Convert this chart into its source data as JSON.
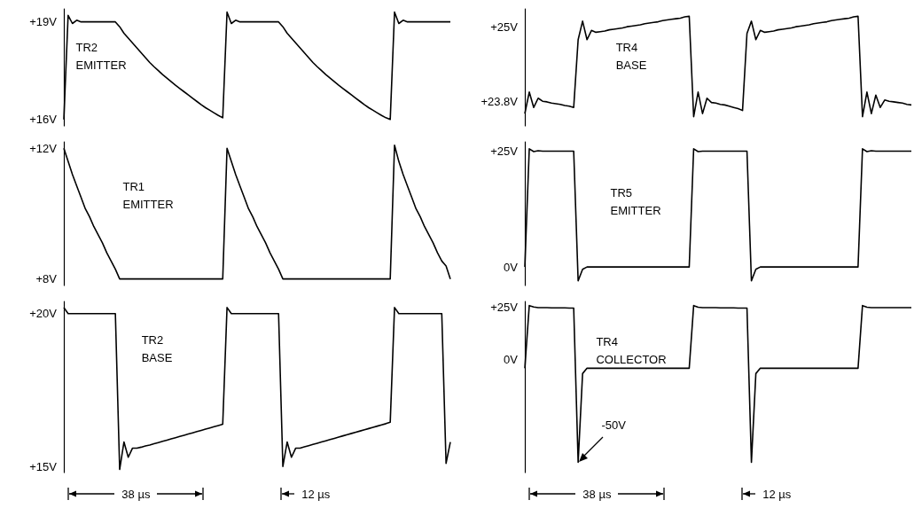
{
  "chart_data": [
    {
      "type": "line",
      "title": "TR2 EMITTER",
      "color": "#000000",
      "ylim": [
        15.8,
        19.4
      ],
      "yticks": [
        {
          "value": 19,
          "label": "+19V"
        },
        {
          "value": 16,
          "label": "+16V"
        }
      ],
      "tick_labels": "y",
      "line_style": "solid",
      "categories": [
        null,
        null,
        null,
        null,
        null,
        null,
        null,
        null,
        null,
        null,
        null,
        null,
        null,
        null,
        null,
        null,
        null,
        null,
        null,
        null,
        null,
        null,
        null,
        null,
        null,
        null,
        null,
        null,
        null,
        null,
        null,
        null,
        null,
        null,
        null,
        null,
        null,
        null,
        null,
        null,
        null,
        null,
        null,
        null,
        null,
        null,
        null,
        null,
        null,
        null,
        null,
        null,
        null,
        null,
        null,
        null,
        null,
        null,
        null,
        null,
        null,
        null,
        null,
        null,
        null,
        null,
        null,
        null,
        null,
        null,
        null,
        null,
        null,
        null,
        null,
        null,
        null,
        null,
        null,
        null,
        null,
        null,
        null,
        null,
        null,
        null,
        null,
        null,
        null,
        null,
        null
      ],
      "values": [
        16,
        19.2,
        18.95,
        19.05,
        19,
        19,
        19,
        19,
        19,
        19,
        19,
        19,
        19,
        18.85,
        18.65,
        18.5,
        18.35,
        18.2,
        18.05,
        17.9,
        17.75,
        17.62,
        17.5,
        17.38,
        17.27,
        17.16,
        17.05,
        16.95,
        16.85,
        16.75,
        16.65,
        16.55,
        16.45,
        16.36,
        16.28,
        16.2,
        16.12,
        16.05,
        19.3,
        18.95,
        19.05,
        19,
        19,
        19,
        19,
        19,
        19,
        19,
        19,
        19,
        19,
        18.85,
        18.65,
        18.5,
        18.35,
        18.2,
        18.05,
        17.9,
        17.75,
        17.62,
        17.5,
        17.38,
        17.27,
        17.16,
        17.05,
        16.95,
        16.85,
        16.75,
        16.65,
        16.55,
        16.45,
        16.36,
        16.28,
        16.2,
        16.12,
        16.05,
        16,
        19.3,
        18.95,
        19.05,
        19,
        19,
        19,
        19,
        19,
        19,
        19,
        19,
        19,
        19,
        19
      ]
    },
    {
      "type": "line",
      "title": "TR1 EMITTER",
      "color": "#000000",
      "ylim": [
        7.8,
        12.2
      ],
      "yticks": [
        {
          "value": 12,
          "label": "+12V"
        },
        {
          "value": 8,
          "label": "+8V"
        }
      ],
      "tick_labels": "y",
      "line_style": "solid",
      "categories": [
        null,
        null,
        null,
        null,
        null,
        null,
        null,
        null,
        null,
        null,
        null,
        null,
        null,
        null,
        null,
        null,
        null,
        null,
        null,
        null,
        null,
        null,
        null,
        null,
        null,
        null,
        null,
        null,
        null,
        null,
        null,
        null,
        null,
        null,
        null,
        null,
        null,
        null,
        null,
        null,
        null,
        null,
        null,
        null,
        null,
        null,
        null,
        null,
        null,
        null,
        null,
        null,
        null,
        null,
        null,
        null,
        null,
        null,
        null,
        null,
        null,
        null,
        null,
        null,
        null,
        null,
        null,
        null,
        null,
        null,
        null,
        null,
        null,
        null,
        null,
        null,
        null,
        null,
        null,
        null,
        null,
        null,
        null,
        null,
        null,
        null,
        null,
        null,
        null,
        null,
        null
      ],
      "values": [
        12,
        11.6,
        11.2,
        10.85,
        10.5,
        10.15,
        9.9,
        9.6,
        9.35,
        9.1,
        8.8,
        8.55,
        8.3,
        8,
        8,
        8,
        8,
        8,
        8,
        8,
        8,
        8,
        8,
        8,
        8,
        8,
        8,
        8,
        8,
        8,
        8,
        8,
        8,
        8,
        8,
        8,
        8,
        8,
        12,
        11.6,
        11.2,
        10.85,
        10.5,
        10.15,
        9.9,
        9.6,
        9.35,
        9.1,
        8.8,
        8.55,
        8.3,
        8,
        8,
        8,
        8,
        8,
        8,
        8,
        8,
        8,
        8,
        8,
        8,
        8,
        8,
        8,
        8,
        8,
        8,
        8,
        8,
        8,
        8,
        8,
        8,
        8,
        8,
        12.1,
        11.6,
        11.2,
        10.85,
        10.5,
        10.15,
        9.9,
        9.6,
        9.35,
        9.1,
        8.8,
        8.55,
        8.4,
        8
      ]
    },
    {
      "type": "line",
      "title": "TR2 BASE",
      "color": "#000000",
      "ylim": [
        14.8,
        20.4
      ],
      "yticks": [
        {
          "value": 20,
          "label": "+20V"
        },
        {
          "value": 15,
          "label": "+15V"
        }
      ],
      "tick_labels": "y",
      "line_style": "solid",
      "annotations": [
        "38 µs",
        "12 µs"
      ],
      "categories": [
        null,
        null,
        null,
        null,
        null,
        null,
        null,
        null,
        null,
        null,
        null,
        null,
        null,
        null,
        null,
        null,
        null,
        null,
        null,
        null,
        null,
        null,
        null,
        null,
        null,
        null,
        null,
        null,
        null,
        null,
        null,
        null,
        null,
        null,
        null,
        null,
        null,
        null,
        null,
        null,
        null,
        null,
        null,
        null,
        null,
        null,
        null,
        null,
        null,
        null,
        null,
        null,
        null,
        null,
        null,
        null,
        null,
        null,
        null,
        null,
        null,
        null,
        null,
        null,
        null,
        null,
        null,
        null,
        null,
        null,
        null,
        null,
        null,
        null,
        null,
        null,
        null,
        null,
        null,
        null,
        null,
        null,
        null,
        null,
        null,
        null,
        null,
        null,
        null,
        null,
        null
      ],
      "values": [
        20.2,
        20,
        20,
        20,
        20,
        20,
        20,
        20,
        20,
        20,
        20,
        20,
        20,
        14.9,
        15.8,
        15.3,
        15.6,
        15.6,
        15.63,
        15.67,
        15.7,
        15.74,
        15.78,
        15.82,
        15.86,
        15.9,
        15.94,
        15.98,
        16.02,
        16.06,
        16.1,
        16.14,
        16.18,
        16.22,
        16.26,
        16.3,
        16.34,
        16.38,
        20.2,
        20,
        20,
        20,
        20,
        20,
        20,
        20,
        20,
        20,
        20,
        20,
        20,
        15,
        15.8,
        15.3,
        15.6,
        15.6,
        15.64,
        15.68,
        15.72,
        15.76,
        15.8,
        15.84,
        15.88,
        15.92,
        15.96,
        16,
        16.04,
        16.08,
        16.12,
        16.16,
        16.2,
        16.24,
        16.28,
        16.32,
        16.36,
        16.4,
        16.45,
        20.2,
        20,
        20,
        20,
        20,
        20,
        20,
        20,
        20,
        20,
        20,
        20,
        15.1,
        15.8
      ]
    },
    {
      "type": "line",
      "title": "TR4 BASE",
      "color": "#000000",
      "ylim": [
        23.4,
        25.3
      ],
      "yticks": [
        {
          "value": 25,
          "label": "+25V"
        },
        {
          "value": 23.8,
          "label": "+23.8V"
        }
      ],
      "tick_labels": "y",
      "line_style": "solid",
      "categories": [
        null,
        null,
        null,
        null,
        null,
        null,
        null,
        null,
        null,
        null,
        null,
        null,
        null,
        null,
        null,
        null,
        null,
        null,
        null,
        null,
        null,
        null,
        null,
        null,
        null,
        null,
        null,
        null,
        null,
        null,
        null,
        null,
        null,
        null,
        null,
        null,
        null,
        null,
        null,
        null,
        null,
        null,
        null,
        null,
        null,
        null,
        null,
        null,
        null,
        null,
        null,
        null,
        null,
        null,
        null,
        null,
        null,
        null,
        null,
        null,
        null,
        null,
        null,
        null,
        null,
        null,
        null,
        null,
        null,
        null,
        null,
        null,
        null,
        null,
        null,
        null,
        null,
        null,
        null,
        null,
        null,
        null,
        null,
        null,
        null,
        null,
        null,
        null
      ],
      "values": [
        23.6,
        23.95,
        23.7,
        23.85,
        23.8,
        23.79,
        23.77,
        23.76,
        23.75,
        23.73,
        23.72,
        23.7,
        24.8,
        25.1,
        24.8,
        24.95,
        24.92,
        24.93,
        24.94,
        24.96,
        24.97,
        24.98,
        24.99,
        25.01,
        25.02,
        25.03,
        25.04,
        25.06,
        25.07,
        25.08,
        25.09,
        25.11,
        25.12,
        25.13,
        25.14,
        25.15,
        25.17,
        25.18,
        23.55,
        23.95,
        23.6,
        23.85,
        23.78,
        23.77,
        23.75,
        23.74,
        23.72,
        23.7,
        23.68,
        23.65,
        24.9,
        25.1,
        24.8,
        24.95,
        24.92,
        24.93,
        24.94,
        24.96,
        24.97,
        24.98,
        24.99,
        25.01,
        25.02,
        25.03,
        25.04,
        25.06,
        25.07,
        25.08,
        25.09,
        25.11,
        25.12,
        25.13,
        25.14,
        25.15,
        25.17,
        25.18,
        23.55,
        23.95,
        23.6,
        23.9,
        23.7,
        23.82,
        23.8,
        23.79,
        23.78,
        23.77,
        23.75,
        23.74
      ]
    },
    {
      "type": "line",
      "title": "TR5 EMITTER",
      "color": "#000000",
      "ylim": [
        -4,
        27
      ],
      "yticks": [
        {
          "value": 25,
          "label": "+25V"
        },
        {
          "value": 0,
          "label": "0V"
        }
      ],
      "tick_labels": "y",
      "line_style": "solid",
      "categories": [
        null,
        null,
        null,
        null,
        null,
        null,
        null,
        null,
        null,
        null,
        null,
        null,
        null,
        null,
        null,
        null,
        null,
        null,
        null,
        null,
        null,
        null,
        null,
        null,
        null,
        null,
        null,
        null,
        null,
        null,
        null,
        null,
        null,
        null,
        null,
        null,
        null,
        null,
        null,
        null,
        null,
        null,
        null,
        null,
        null,
        null,
        null,
        null,
        null,
        null,
        null,
        null,
        null,
        null,
        null,
        null,
        null,
        null,
        null,
        null,
        null,
        null,
        null,
        null,
        null,
        null,
        null,
        null,
        null,
        null,
        null,
        null,
        null,
        null,
        null,
        null,
        null,
        null,
        null,
        null,
        null,
        null,
        null,
        null,
        null,
        null,
        null,
        null
      ],
      "values": [
        0,
        25.5,
        24.9,
        25.1,
        25,
        25,
        25,
        25,
        25,
        25,
        25,
        25,
        -3,
        -0.5,
        0,
        0,
        0,
        0,
        0,
        0,
        0,
        0,
        0,
        0,
        0,
        0,
        0,
        0,
        0,
        0,
        0,
        0,
        0,
        0,
        0,
        0,
        0,
        0,
        25.5,
        24.9,
        25,
        25,
        25,
        25,
        25,
        25,
        25,
        25,
        25,
        25,
        25,
        -3,
        -0.5,
        0,
        0,
        0,
        0,
        0,
        0,
        0,
        0,
        0,
        0,
        0,
        0,
        0,
        0,
        0,
        0,
        0,
        0,
        0,
        0,
        0,
        0,
        0,
        25.5,
        24.9,
        25.1,
        25,
        25,
        25,
        25,
        25,
        25,
        25,
        25,
        25
      ]
    },
    {
      "type": "line",
      "title": "TR4 COLLECTOR",
      "color": "#000000",
      "ylim": [
        -55,
        28
      ],
      "yticks": [
        {
          "value": 25,
          "label": "+25V"
        },
        {
          "value": 0,
          "label": "0V"
        }
      ],
      "tick_labels": "y",
      "line_style": "solid",
      "annotations": [
        "-50V",
        "38 µs",
        "12 µs"
      ],
      "categories": [
        null,
        null,
        null,
        null,
        null,
        null,
        null,
        null,
        null,
        null,
        null,
        null,
        null,
        null,
        null,
        null,
        null,
        null,
        null,
        null,
        null,
        null,
        null,
        null,
        null,
        null,
        null,
        null,
        null,
        null,
        null,
        null,
        null,
        null,
        null,
        null,
        null,
        null,
        null,
        null,
        null,
        null,
        null,
        null,
        null,
        null,
        null,
        null,
        null,
        null,
        null,
        null,
        null,
        null,
        null,
        null,
        null,
        null,
        null,
        null,
        null,
        null,
        null,
        null,
        null,
        null,
        null,
        null,
        null,
        null,
        null,
        null,
        null,
        null,
        null,
        null,
        null,
        null,
        null,
        null,
        null,
        null,
        null,
        null,
        null,
        null,
        null,
        null
      ],
      "values": [
        -4.4,
        26,
        25.3,
        25,
        25,
        25,
        24.9,
        24.9,
        24.9,
        24.9,
        24.8,
        24.8,
        -50,
        -7,
        -4.4,
        -4.4,
        -4.4,
        -4.4,
        -4.4,
        -4.4,
        -4.4,
        -4.4,
        -4.4,
        -4.4,
        -4.4,
        -4.4,
        -4.4,
        -4.4,
        -4.4,
        -4.4,
        -4.4,
        -4.4,
        -4.4,
        -4.4,
        -4.4,
        -4.4,
        -4.4,
        -4.4,
        26,
        25.2,
        25,
        25,
        25,
        25,
        24.9,
        24.9,
        24.9,
        24.9,
        24.8,
        24.8,
        24.8,
        -50,
        -7,
        -4.4,
        -4.4,
        -4.4,
        -4.4,
        -4.4,
        -4.4,
        -4.4,
        -4.4,
        -4.4,
        -4.4,
        -4.4,
        -4.4,
        -4.4,
        -4.4,
        -4.4,
        -4.4,
        -4.4,
        -4.4,
        -4.4,
        -4.4,
        -4.4,
        -4.4,
        -4.4,
        26,
        25.2,
        25,
        25,
        25,
        25,
        25,
        25,
        25,
        25,
        25,
        25
      ]
    }
  ]
}
